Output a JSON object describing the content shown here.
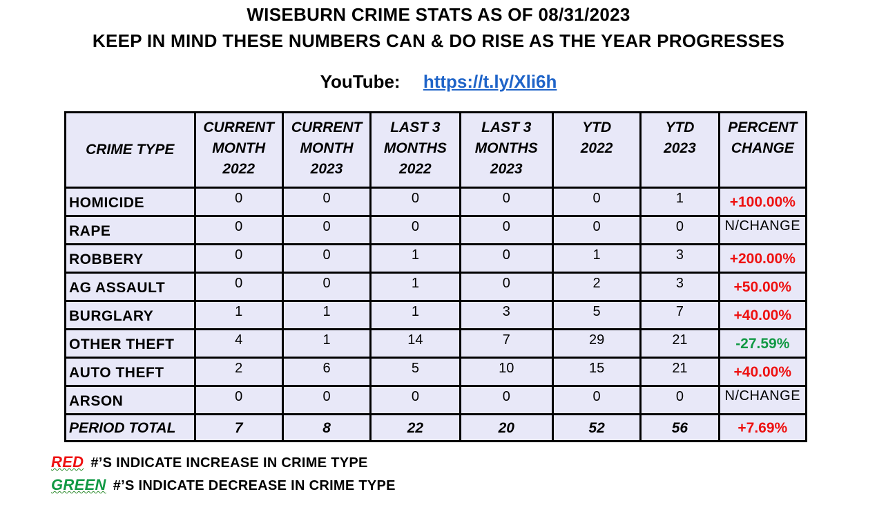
{
  "header": {
    "title_line1": "WISEBURN CRIME STATS AS OF 08/31/2023",
    "title_line2": "KEEP IN MIND THESE NUMBERS CAN & DO RISE AS THE YEAR PROGRESSES",
    "youtube_label": "YouTube:",
    "youtube_link": "https://t.ly/Xli6h"
  },
  "colors": {
    "increase": "#ee1111",
    "decrease": "#119944",
    "table_fill": "#e8e8f8",
    "link": "#1f64c8"
  },
  "table": {
    "headers": [
      [
        "CRIME TYPE"
      ],
      [
        "CURRENT",
        "MONTH",
        "2022"
      ],
      [
        "CURRENT",
        "MONTH",
        "2023"
      ],
      [
        "LAST 3",
        "MONTHS",
        "2022"
      ],
      [
        "LAST 3",
        "MONTHS",
        "2023"
      ],
      [
        "YTD",
        "2022"
      ],
      [
        "YTD",
        "2023"
      ],
      [
        "PERCENT",
        "CHANGE"
      ]
    ],
    "rows": [
      {
        "name": "HOMICIDE",
        "values": [
          "0",
          "0",
          "0",
          "0",
          "0",
          "1"
        ],
        "pct": "+100.00%",
        "trend": "up"
      },
      {
        "name": "RAPE",
        "values": [
          "0",
          "0",
          "0",
          "0",
          "0",
          "0"
        ],
        "pct": "N/CHANGE",
        "trend": "none"
      },
      {
        "name": "ROBBERY",
        "values": [
          "0",
          "0",
          "1",
          "0",
          "1",
          "3"
        ],
        "pct": "+200.00%",
        "trend": "up"
      },
      {
        "name": "AG ASSAULT",
        "values": [
          "0",
          "0",
          "1",
          "0",
          "2",
          "3"
        ],
        "pct": "+50.00%",
        "trend": "up"
      },
      {
        "name": "BURGLARY",
        "values": [
          "1",
          "1",
          "1",
          "3",
          "5",
          "7"
        ],
        "pct": "+40.00%",
        "trend": "up"
      },
      {
        "name": "OTHER THEFT",
        "values": [
          "4",
          "1",
          "14",
          "7",
          "29",
          "21"
        ],
        "pct": "-27.59%",
        "trend": "down"
      },
      {
        "name": "AUTO THEFT",
        "values": [
          "2",
          "6",
          "5",
          "10",
          "15",
          "21"
        ],
        "pct": "+40.00%",
        "trend": "up"
      },
      {
        "name": "ARSON",
        "values": [
          "0",
          "0",
          "0",
          "0",
          "0",
          "0"
        ],
        "pct": "N/CHANGE",
        "trend": "none"
      }
    ],
    "total": {
      "name": "PERIOD TOTAL",
      "values": [
        "7",
        "8",
        "22",
        "20",
        "52",
        "56"
      ],
      "pct": "+7.69%",
      "trend": "up"
    }
  },
  "legend": {
    "red_key": "RED",
    "red_text": "#’S INDICATE INCREASE IN CRIME TYPE",
    "green_key": "GREEN",
    "green_text": "#’S INDICATE DECREASE IN CRIME TYPE"
  }
}
